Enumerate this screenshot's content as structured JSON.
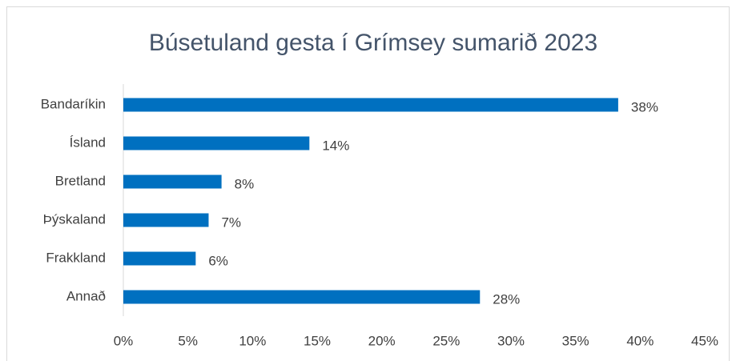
{
  "chart_data": {
    "type": "bar",
    "orientation": "horizontal",
    "title": "Búsetuland gesta í Grímsey sumarið 2023",
    "categories": [
      "Bandaríkin",
      "Ísland",
      "Bretland",
      "Þýskaland",
      "Frakkland",
      "Annað"
    ],
    "values": [
      38.3,
      14.4,
      7.6,
      6.6,
      5.6,
      27.6
    ],
    "value_labels": [
      "38%",
      "14%",
      "8%",
      "7%",
      "6%",
      "28%"
    ],
    "color": "#0070c0",
    "xlim": [
      0,
      45
    ],
    "xticks": [
      {
        "value": 0,
        "label": "0%"
      },
      {
        "value": 5,
        "label": "5%"
      },
      {
        "value": 10,
        "label": "10%"
      },
      {
        "value": 15,
        "label": "15%"
      },
      {
        "value": 20,
        "label": "20%"
      },
      {
        "value": 25,
        "label": "25%"
      },
      {
        "value": 30,
        "label": "30%"
      },
      {
        "value": 35,
        "label": "35%"
      },
      {
        "value": 40,
        "label": "40%"
      },
      {
        "value": 45,
        "label": "45%"
      }
    ],
    "grid": false
  }
}
